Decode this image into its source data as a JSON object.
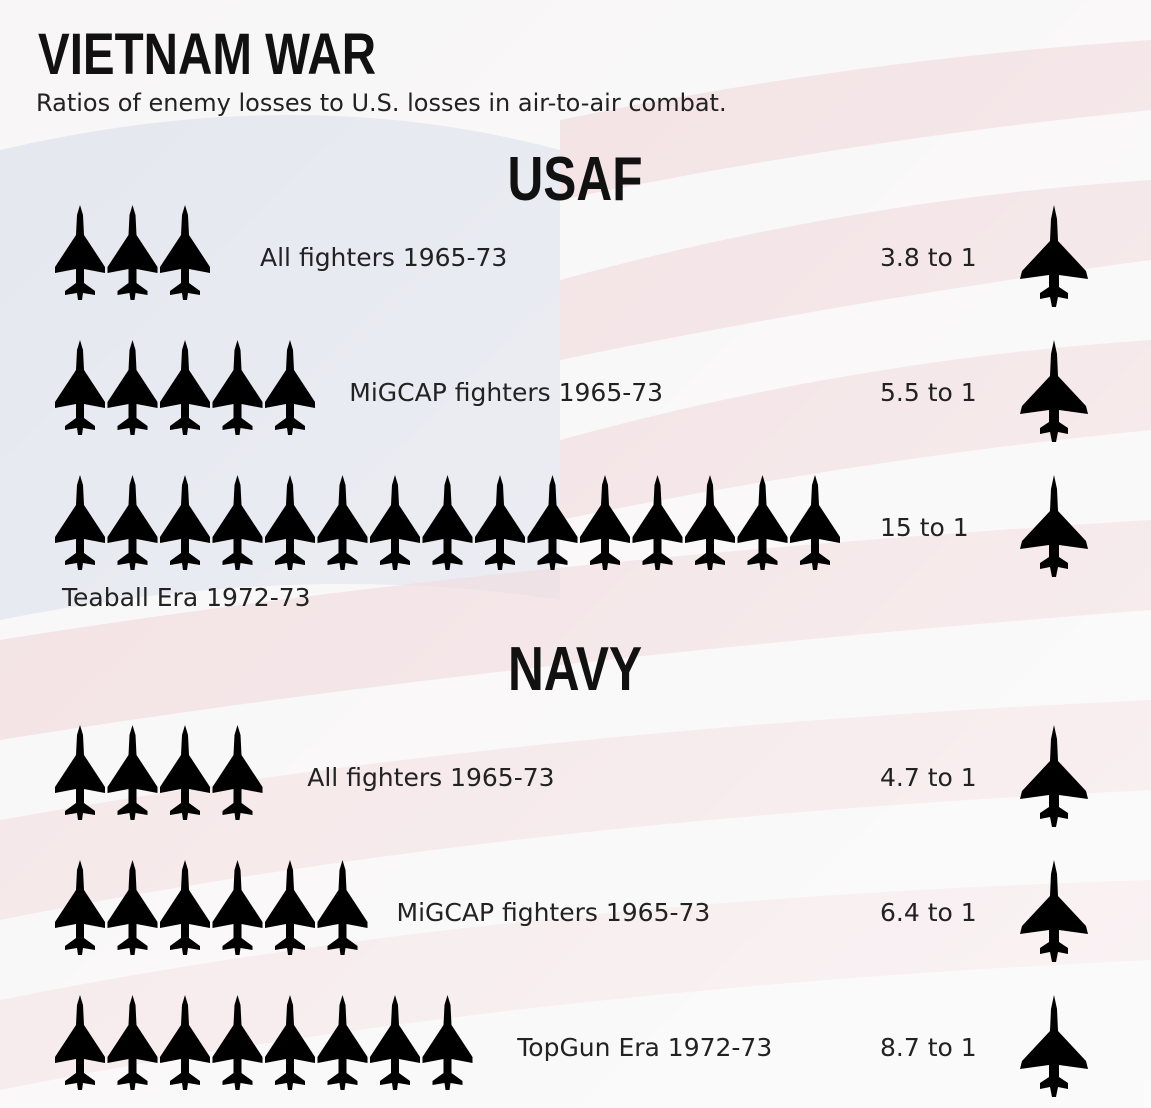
{
  "chart_data": [
    {
      "type": "pictogram",
      "title": "VIETNAM WAR",
      "subtitle": "Ratios of enemy losses to U.S. losses in air-to-air combat.",
      "heading": "USAF",
      "categories": [
        "All fighters 1965-73",
        "MiGCAP fighters 1965-73",
        "Teaball Era 1972-73"
      ],
      "values": [
        3.8,
        5.5,
        15
      ],
      "value_labels": [
        "3.8 to 1",
        "5.5 to 1",
        "15 to 1"
      ],
      "color": "#000000"
    },
    {
      "type": "pictogram",
      "heading": "NAVY",
      "categories": [
        "All fighters 1965-73",
        "MiGCAP fighters 1965-73",
        "TopGun Era 1972-73"
      ],
      "values": [
        4.7,
        6.4,
        8.7
      ],
      "value_labels": [
        "4.7 to 1",
        "6.4 to 1",
        "8.7 to 1"
      ],
      "color": "#000000"
    }
  ]
}
